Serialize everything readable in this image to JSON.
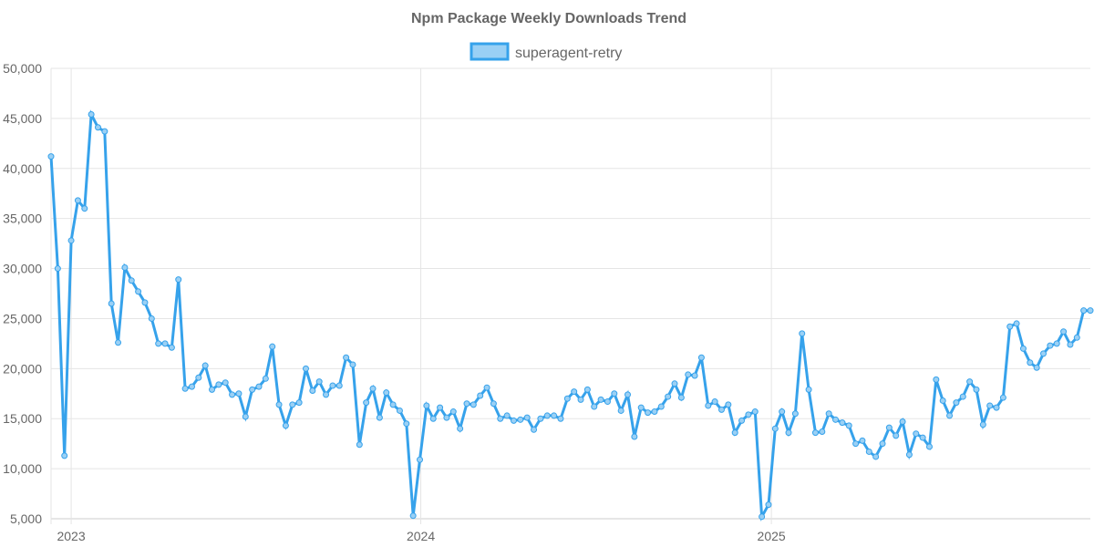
{
  "chart_data": {
    "type": "line",
    "title": "Npm Package Weekly Downloads Trend",
    "xlabel": "",
    "ylabel": "",
    "ylim": [
      5000,
      50000
    ],
    "yticks": [
      "5,000",
      "10,000",
      "15,000",
      "20,000",
      "25,000",
      "30,000",
      "35,000",
      "40,000",
      "45,000",
      "50,000"
    ],
    "xticks": [
      {
        "label": "2023",
        "date": "2023-01-01"
      },
      {
        "label": "2024",
        "date": "2024-01-01"
      },
      {
        "label": "2025",
        "date": "2025-01-01"
      }
    ],
    "grid": true,
    "legend_position": "top",
    "colors": {
      "line": "#36a2eb",
      "fill": "#9ad0f5",
      "grid": "#e5e5e5",
      "text": "#666666"
    },
    "x": [
      "2022-12-11",
      "2022-12-18",
      "2022-12-25",
      "2023-01-01",
      "2023-01-08",
      "2023-01-15",
      "2023-01-22",
      "2023-01-29",
      "2023-02-05",
      "2023-02-12",
      "2023-02-19",
      "2023-02-26",
      "2023-03-05",
      "2023-03-12",
      "2023-03-19",
      "2023-03-26",
      "2023-04-02",
      "2023-04-09",
      "2023-04-16",
      "2023-04-23",
      "2023-04-30",
      "2023-05-07",
      "2023-05-14",
      "2023-05-21",
      "2023-05-28",
      "2023-06-04",
      "2023-06-11",
      "2023-06-18",
      "2023-06-25",
      "2023-07-02",
      "2023-07-09",
      "2023-07-16",
      "2023-07-23",
      "2023-07-30",
      "2023-08-06",
      "2023-08-13",
      "2023-08-20",
      "2023-08-27",
      "2023-09-03",
      "2023-09-10",
      "2023-09-17",
      "2023-09-24",
      "2023-10-01",
      "2023-10-08",
      "2023-10-15",
      "2023-10-22",
      "2023-10-29",
      "2023-11-05",
      "2023-11-12",
      "2023-11-19",
      "2023-11-26",
      "2023-12-03",
      "2023-12-10",
      "2023-12-17",
      "2023-12-24",
      "2023-12-31",
      "2024-01-07",
      "2024-01-14",
      "2024-01-21",
      "2024-01-28",
      "2024-02-04",
      "2024-02-11",
      "2024-02-18",
      "2024-02-25",
      "2024-03-03",
      "2024-03-10",
      "2024-03-17",
      "2024-03-24",
      "2024-03-31",
      "2024-04-07",
      "2024-04-14",
      "2024-04-21",
      "2024-04-28",
      "2024-05-05",
      "2024-05-12",
      "2024-05-19",
      "2024-05-26",
      "2024-06-02",
      "2024-06-09",
      "2024-06-16",
      "2024-06-23",
      "2024-06-30",
      "2024-07-07",
      "2024-07-14",
      "2024-07-21",
      "2024-07-28",
      "2024-08-04",
      "2024-08-11",
      "2024-08-18",
      "2024-08-25",
      "2024-09-01",
      "2024-09-08",
      "2024-09-15",
      "2024-09-22",
      "2024-09-29",
      "2024-10-06",
      "2024-10-13",
      "2024-10-20",
      "2024-10-27",
      "2024-11-03",
      "2024-11-10",
      "2024-11-17",
      "2024-11-24",
      "2024-12-01",
      "2024-12-08",
      "2024-12-15",
      "2024-12-22",
      "2024-12-29",
      "2025-01-05",
      "2025-01-12",
      "2025-01-19",
      "2025-01-26",
      "2025-02-02",
      "2025-02-09",
      "2025-02-16",
      "2025-02-23",
      "2025-03-02",
      "2025-03-09",
      "2025-03-16",
      "2025-03-23",
      "2025-03-30",
      "2025-04-06",
      "2025-04-13",
      "2025-04-20",
      "2025-04-27",
      "2025-05-04",
      "2025-05-11",
      "2025-05-18",
      "2025-05-25",
      "2025-06-01",
      "2025-06-08",
      "2025-06-15",
      "2025-06-22",
      "2025-06-29",
      "2025-07-06",
      "2025-07-13",
      "2025-07-20",
      "2025-07-27",
      "2025-08-03",
      "2025-08-10",
      "2025-08-17",
      "2025-08-24",
      "2025-08-31",
      "2025-09-07",
      "2025-09-14",
      "2025-09-21",
      "2025-09-28",
      "2025-10-05",
      "2025-10-12",
      "2025-10-19",
      "2025-10-26",
      "2025-11-02",
      "2025-11-09",
      "2025-11-16",
      "2025-11-23",
      "2025-11-30"
    ],
    "series": [
      {
        "name": "superagent-retry",
        "values": [
          41200,
          30000,
          11300,
          32800,
          36800,
          36000,
          45400,
          44100,
          43700,
          26500,
          22600,
          30100,
          28800,
          27700,
          26600,
          25000,
          22500,
          22500,
          22100,
          28900,
          18000,
          18200,
          19100,
          20300,
          17900,
          18400,
          18600,
          17400,
          17500,
          15200,
          17900,
          18200,
          19000,
          22200,
          16400,
          14300,
          16400,
          16600,
          20000,
          17800,
          18700,
          17400,
          18300,
          18300,
          21100,
          20400,
          12400,
          16600,
          18000,
          15100,
          17600,
          16400,
          15800,
          14500,
          5300,
          10900,
          16300,
          15000,
          16100,
          15100,
          15700,
          14000,
          16500,
          16400,
          17300,
          18100,
          16500,
          15000,
          15300,
          14800,
          14900,
          15100,
          13900,
          15000,
          15300,
          15300,
          15000,
          17000,
          17700,
          16900,
          17900,
          16200,
          16900,
          16700,
          17500,
          15800,
          17400,
          13200,
          16100,
          15600,
          15700,
          16200,
          17200,
          18500,
          17100,
          19400,
          19300,
          21100,
          16300,
          16700,
          15900,
          16400,
          13600,
          14800,
          15400,
          15700,
          5200,
          6400,
          14000,
          15700,
          13600,
          15500,
          23500,
          17900,
          13600,
          13700,
          15500,
          14900,
          14600,
          14300,
          12500,
          12800,
          11700,
          11200,
          12500,
          14100,
          13300,
          14700,
          11400,
          13500,
          13100,
          12200,
          18900,
          16800,
          15300,
          16600,
          17200,
          18700,
          17900,
          14400,
          16300,
          16100,
          17100,
          24200,
          24500,
          22000,
          20600,
          20100,
          21500,
          22300,
          22500,
          23700,
          22400,
          23100,
          25800,
          25800
        ]
      }
    ]
  }
}
